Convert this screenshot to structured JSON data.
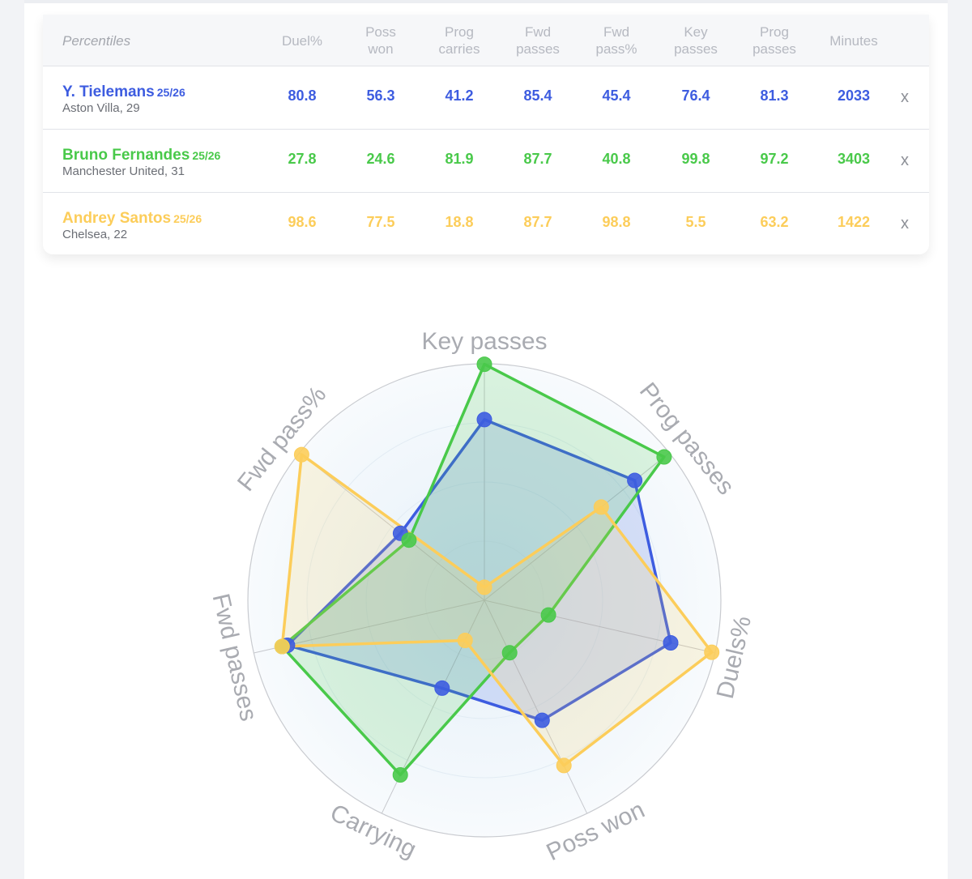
{
  "table": {
    "headers": [
      {
        "key": "percentiles",
        "line1": "Percentiles",
        "line2": ""
      },
      {
        "key": "duel_pct",
        "line1": "Duel%",
        "line2": ""
      },
      {
        "key": "poss_won",
        "line1": "Poss",
        "line2": "won"
      },
      {
        "key": "prog_carries",
        "line1": "Prog",
        "line2": "carries"
      },
      {
        "key": "fwd_passes",
        "line1": "Fwd",
        "line2": "passes"
      },
      {
        "key": "fwd_pass_pct",
        "line1": "Fwd",
        "line2": "pass%"
      },
      {
        "key": "key_passes",
        "line1": "Key",
        "line2": "passes"
      },
      {
        "key": "prog_passes",
        "line1": "Prog",
        "line2": "passes"
      },
      {
        "key": "minutes",
        "line1": "Minutes",
        "line2": ""
      }
    ],
    "rows": [
      {
        "name": "Y. Tielemans",
        "season": "25/26",
        "club": "Aston Villa, 29",
        "color": "#3d5ce0",
        "values": [
          "80.8",
          "56.3",
          "41.2",
          "85.4",
          "45.4",
          "76.4",
          "81.3",
          "2033"
        ],
        "remove": "x"
      },
      {
        "name": "Bruno Fernandes",
        "season": "25/26",
        "club": "Manchester United, 31",
        "color": "#49c94a",
        "values": [
          "27.8",
          "24.6",
          "81.9",
          "87.7",
          "40.8",
          "99.8",
          "97.2",
          "3403"
        ],
        "remove": "x"
      },
      {
        "name": "Andrey Santos",
        "season": "25/26",
        "club": "Chelsea, 22",
        "color": "#fccd5a",
        "values": [
          "98.6",
          "77.5",
          "18.8",
          "87.7",
          "98.8",
          "5.5",
          "63.2",
          "1422"
        ],
        "remove": "x"
      }
    ]
  },
  "chart_data": {
    "type": "radar",
    "axes": [
      "Key passes",
      "Prog passes",
      "Duels%",
      "Poss won",
      "Carrying",
      "Fwd passes",
      "Fwd pass%"
    ],
    "rlim": [
      0,
      100
    ],
    "grid": true,
    "series": [
      {
        "name": "Y. Tielemans",
        "color": "#3d5ce0",
        "values": [
          76.4,
          81.3,
          80.8,
          56.3,
          41.2,
          85.4,
          45.4
        ]
      },
      {
        "name": "Bruno Fernandes",
        "color": "#49c94a",
        "values": [
          99.8,
          97.2,
          27.8,
          24.6,
          81.9,
          87.7,
          40.8
        ]
      },
      {
        "name": "Andrey Santos",
        "color": "#fccd5a",
        "values": [
          5.5,
          63.2,
          98.6,
          77.5,
          18.8,
          87.7,
          98.8
        ]
      }
    ]
  }
}
